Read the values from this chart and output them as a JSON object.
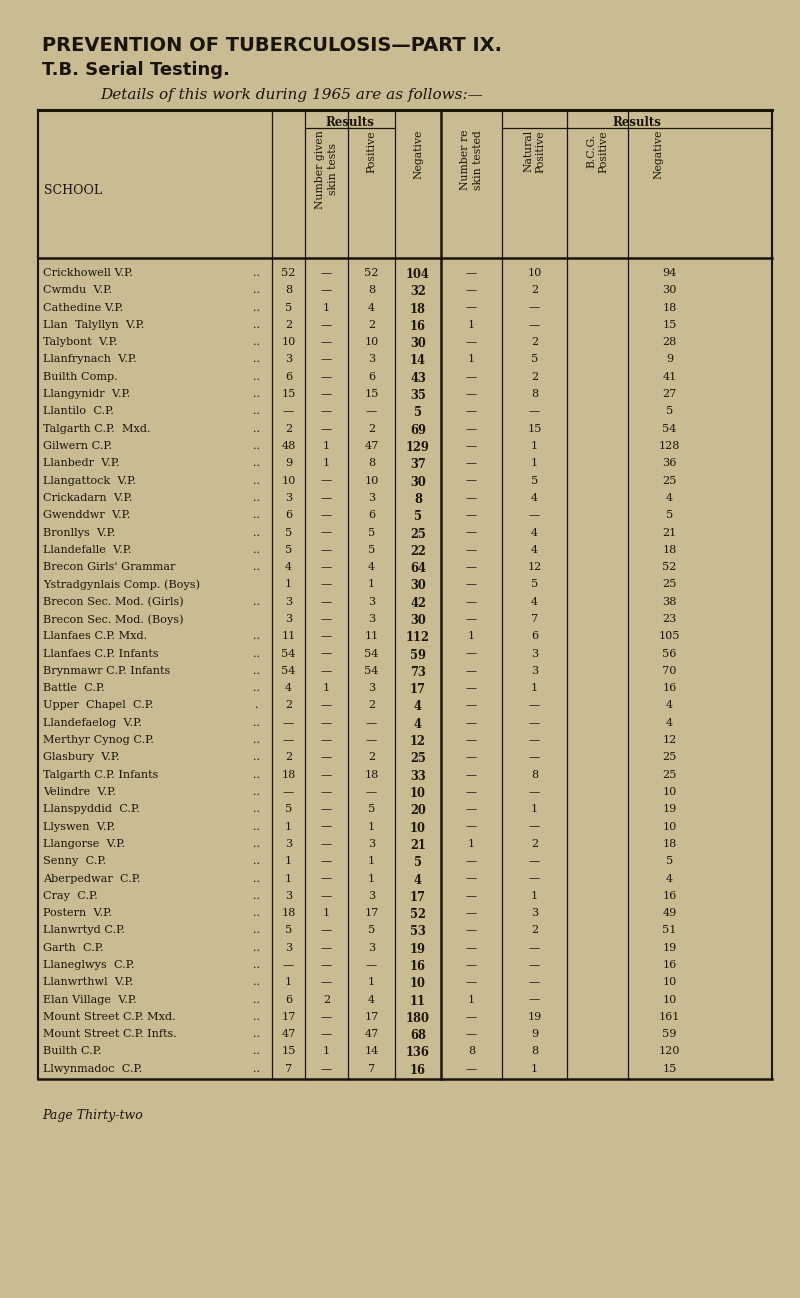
{
  "title1": "PREVENTION OF TUBERCULOSIS—PART IX.",
  "title2": "T.B. Serial Testing.",
  "subtitle": "Details of this work during 1965 are as follows:—",
  "footer": "Page Thirty-two",
  "bg_color": "#c9bc93",
  "text_color": "#1a1508",
  "rows": [
    [
      "Crickhowell V.P.",
      "..",
      "52",
      "—",
      "52",
      "104",
      "—",
      "10",
      "94"
    ],
    [
      "Cwmdu  V.P.",
      "..",
      "8",
      "—",
      "8",
      "32",
      "—",
      "2",
      "30"
    ],
    [
      "Cathedine V.P.",
      "..",
      "5",
      "1",
      "4",
      "18",
      "—",
      "—",
      "18"
    ],
    [
      "Llan  Talyllyn  V.P.",
      "..",
      "2",
      "—",
      "2",
      "16",
      "1",
      "—",
      "15"
    ],
    [
      "Talybont  V.P.",
      "..",
      "10",
      "—",
      "10",
      "30",
      "—",
      "2",
      "28"
    ],
    [
      "Llanfrynach  V.P.",
      "..",
      "3",
      "—",
      "3",
      "14",
      "1",
      "5",
      "9"
    ],
    [
      "Builth Comp.",
      "..",
      "6",
      "—",
      "6",
      "43",
      "—",
      "2",
      "41"
    ],
    [
      "Llangynidr  V.P.",
      "..",
      "15",
      "—",
      "15",
      "35",
      "—",
      "8",
      "27"
    ],
    [
      "Llantilo  C.P.",
      "..",
      "—",
      "—",
      "—",
      "5",
      "—",
      "—",
      "5"
    ],
    [
      "Talgarth C.P.  Mxd.",
      "..",
      "2",
      "—",
      "2",
      "69",
      "—",
      "15",
      "54"
    ],
    [
      "Gilwern C.P.",
      "..",
      "48",
      "1",
      "47",
      "129",
      "—",
      "1",
      "128"
    ],
    [
      "Llanbedr  V.P.",
      "..",
      "9",
      "1",
      "8",
      "37",
      "—",
      "1",
      "36"
    ],
    [
      "Llangattock  V.P.",
      "..",
      "10",
      "—",
      "10",
      "30",
      "—",
      "5",
      "25"
    ],
    [
      "Crickadarn  V.P.",
      "..",
      "3",
      "—",
      "3",
      "8",
      "—",
      "4",
      "4"
    ],
    [
      "Gwenddwr  V.P.",
      "..",
      "6",
      "—",
      "6",
      "5",
      "—",
      "—",
      "5"
    ],
    [
      "Bronllys  V.P.",
      "..",
      "5",
      "—",
      "5",
      "25",
      "—",
      "4",
      "21"
    ],
    [
      "Llandefalle  V.P.",
      "..",
      "5",
      "—",
      "5",
      "22",
      "—",
      "4",
      "18"
    ],
    [
      "Brecon Girls' Grammar",
      "..",
      "4",
      "—",
      "4",
      "64",
      "—",
      "12",
      "52"
    ],
    [
      "Ystradgynlais Comp. (Boys)",
      "",
      "1",
      "—",
      "1",
      "30",
      "—",
      "5",
      "25"
    ],
    [
      "Brecon Sec. Mod. (Girls)",
      "..",
      "3",
      "—",
      "3",
      "42",
      "—",
      "4",
      "38"
    ],
    [
      "Brecon Sec. Mod. (Boys)",
      "",
      "3",
      "—",
      "3",
      "30",
      "—",
      "7",
      "23"
    ],
    [
      "Llanfaes C.P. Mxd.",
      "..",
      "11",
      "—",
      "11",
      "112",
      "1",
      "6",
      "105"
    ],
    [
      "Llanfaes C.P. Infants",
      "..",
      "54",
      "—",
      "54",
      "59",
      "—",
      "3",
      "56"
    ],
    [
      "Brynmawr C.P. Infants",
      "..",
      "54",
      "—",
      "54",
      "73",
      "—",
      "3",
      "70"
    ],
    [
      "Battle  C.P.",
      "..",
      "4",
      "1",
      "3",
      "17",
      "—",
      "1",
      "16"
    ],
    [
      "Upper  Chapel  C.P.",
      ".",
      "2",
      "—",
      "2",
      "4",
      "—",
      "—",
      "4"
    ],
    [
      "Llandefaelog  V.P.",
      "..",
      "—",
      "—",
      "—",
      "4",
      "—",
      "—",
      "4"
    ],
    [
      "Merthyr Cynog C.P.",
      "..",
      "—",
      "—",
      "—",
      "12",
      "—",
      "—",
      "12"
    ],
    [
      "Glasbury  V.P.",
      "..",
      "2",
      "—",
      "2",
      "25",
      "—",
      "—",
      "25"
    ],
    [
      "Talgarth C.P. Infants",
      "..",
      "18",
      "—",
      "18",
      "33",
      "—",
      "8",
      "25"
    ],
    [
      "Velindre  V.P.",
      "..",
      "—",
      "—",
      "—",
      "10",
      "—",
      "—",
      "10"
    ],
    [
      "Llanspyddid  C.P.",
      "..",
      "5",
      "—",
      "5",
      "20",
      "—",
      "1",
      "19"
    ],
    [
      "Llyswen  V.P.",
      "..",
      "1",
      "—",
      "1",
      "10",
      "—",
      "—",
      "10"
    ],
    [
      "Llangorse  V.P.",
      "..",
      "3",
      "—",
      "3",
      "21",
      "1",
      "2",
      "18"
    ],
    [
      "Senny  C.P.",
      "..",
      "1",
      "—",
      "1",
      "5",
      "—",
      "—",
      "5"
    ],
    [
      "Aberpedwar  C.P.",
      "..",
      "1",
      "—",
      "1",
      "4",
      "—",
      "—",
      "4"
    ],
    [
      "Cray  C.P.",
      "..",
      "3",
      "—",
      "3",
      "17",
      "—",
      "1",
      "16"
    ],
    [
      "Postern  V.P.",
      "..",
      "18",
      "1",
      "17",
      "52",
      "—",
      "3",
      "49"
    ],
    [
      "Llanwrtyd C.P.",
      "..",
      "5",
      "—",
      "5",
      "53",
      "—",
      "2",
      "51"
    ],
    [
      "Garth  C.P.",
      "..",
      "3",
      "—",
      "3",
      "19",
      "—",
      "—",
      "19"
    ],
    [
      "Llaneglwys  C.P.",
      "..",
      "—",
      "—",
      "—",
      "16",
      "—",
      "—",
      "16"
    ],
    [
      "Llanwrthwl  V.P.",
      "..",
      "1",
      "—",
      "1",
      "10",
      "—",
      "—",
      "10"
    ],
    [
      "Elan Village  V.P.",
      "..",
      "6",
      "2",
      "4",
      "11",
      "1",
      "—",
      "10"
    ],
    [
      "Mount Street C.P. Mxd.",
      "..",
      "17",
      "—",
      "17",
      "180",
      "—",
      "19",
      "161"
    ],
    [
      "Mount Street C.P. Infts.",
      "..",
      "47",
      "—",
      "47",
      "68",
      "—",
      "9",
      "59"
    ],
    [
      "Builth C.P.",
      "..",
      "15",
      "1",
      "14",
      "136",
      "8",
      "8",
      "120"
    ],
    [
      "Llwynmadoc  C.P.",
      "..",
      "7",
      "—",
      "7",
      "16",
      "—",
      "1",
      "15"
    ]
  ]
}
